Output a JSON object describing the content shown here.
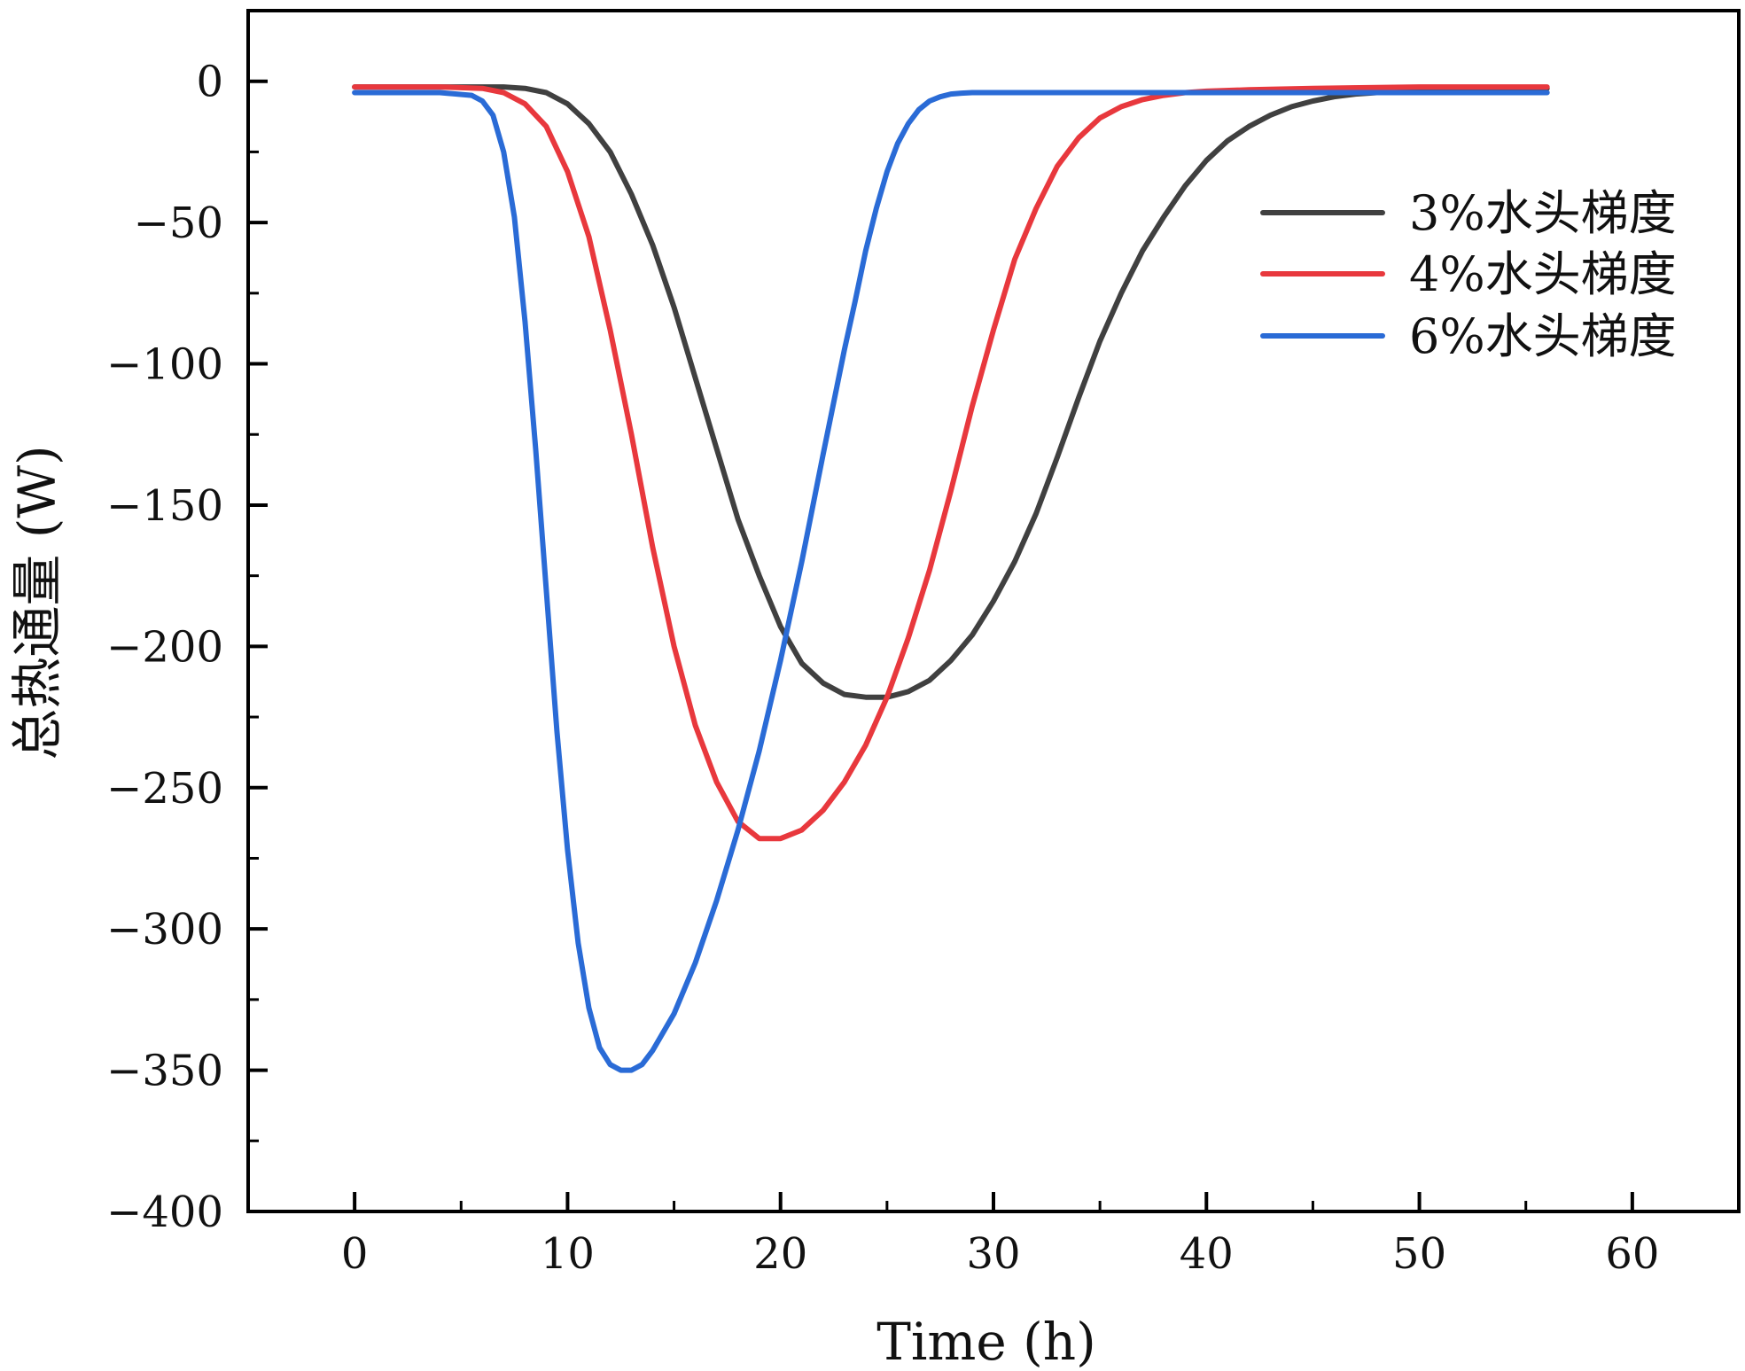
{
  "chart_data": {
    "type": "line",
    "title": "",
    "xlabel": "Time (h)",
    "ylabel": "总热通量 (W)",
    "xlim": [
      -5,
      65
    ],
    "ylim": [
      -400,
      25
    ],
    "xticks": [
      0,
      10,
      20,
      30,
      40,
      50,
      60
    ],
    "yticks": [
      0,
      -50,
      -100,
      -150,
      -200,
      -250,
      -300,
      -350,
      -400
    ],
    "xtick_labels": [
      "0",
      "10",
      "20",
      "30",
      "40",
      "50",
      "60"
    ],
    "ytick_labels": [
      "0",
      "−50",
      "−100",
      "−150",
      "−200",
      "−250",
      "−300",
      "−350",
      "−400"
    ],
    "grid": false,
    "legend_position": "top-right",
    "series": [
      {
        "name": "3%水头梯度",
        "color": "#404040",
        "x": [
          0,
          4,
          7,
          8,
          9,
          10,
          11,
          12,
          13,
          14,
          15,
          16,
          17,
          18,
          19,
          20,
          21,
          22,
          23,
          24,
          25,
          26,
          27,
          28,
          29,
          30,
          31,
          32,
          33,
          34,
          35,
          36,
          37,
          38,
          39,
          40,
          41,
          42,
          43,
          44,
          45,
          46,
          47,
          48,
          49,
          50,
          52,
          56
        ],
        "values": [
          -2,
          -2,
          -2,
          -2.5,
          -4,
          -8,
          -15,
          -25,
          -40,
          -58,
          -80,
          -105,
          -130,
          -155,
          -175,
          -193,
          -206,
          -213,
          -217,
          -218,
          -218,
          -216,
          -212,
          -205,
          -196,
          -184,
          -170,
          -153,
          -133,
          -112,
          -92,
          -75,
          -60,
          -48,
          -37,
          -28,
          -21,
          -16,
          -12,
          -9,
          -7,
          -5.5,
          -4.5,
          -4,
          -3.5,
          -3,
          -2.5,
          -2.5
        ]
      },
      {
        "name": "4%水头梯度",
        "color": "#e8383d",
        "x": [
          0,
          4,
          6,
          7,
          8,
          9,
          10,
          11,
          12,
          13,
          14,
          15,
          16,
          17,
          18,
          19,
          20,
          21,
          22,
          23,
          24,
          25,
          26,
          27,
          28,
          29,
          30,
          31,
          32,
          33,
          34,
          35,
          36,
          37,
          38,
          39,
          40,
          42,
          45,
          50,
          56
        ],
        "values": [
          -2,
          -2,
          -2.5,
          -4,
          -8,
          -16,
          -32,
          -55,
          -88,
          -125,
          -165,
          -200,
          -228,
          -248,
          -262,
          -268,
          -268,
          -265,
          -258,
          -248,
          -235,
          -218,
          -197,
          -173,
          -145,
          -115,
          -88,
          -63,
          -45,
          -30,
          -20,
          -13,
          -9,
          -6.5,
          -5,
          -4,
          -3.5,
          -3,
          -2.5,
          -2,
          -2
        ]
      },
      {
        "name": "6%水头梯度",
        "color": "#2a6bd6",
        "x": [
          0,
          4,
          5.5,
          6,
          6.5,
          7,
          7.5,
          8,
          8.5,
          9,
          9.5,
          10,
          10.5,
          11,
          11.5,
          12,
          12.5,
          13,
          13.5,
          14,
          15,
          16,
          17,
          18,
          19,
          20,
          21,
          22,
          23,
          23.5,
          24,
          24.5,
          25,
          25.5,
          26,
          26.5,
          27,
          27.5,
          28,
          28.5,
          29,
          30,
          32,
          40,
          50,
          56
        ],
        "values": [
          -4,
          -4,
          -5,
          -7,
          -12,
          -25,
          -48,
          -85,
          -130,
          -180,
          -230,
          -272,
          -305,
          -328,
          -342,
          -348,
          -350,
          -350,
          -348,
          -343,
          -330,
          -312,
          -290,
          -265,
          -237,
          -205,
          -170,
          -132,
          -95,
          -78,
          -60,
          -45,
          -32,
          -22,
          -15,
          -10,
          -7,
          -5.5,
          -4.5,
          -4.2,
          -4,
          -4,
          -4,
          -4,
          -4,
          -4
        ]
      }
    ]
  }
}
